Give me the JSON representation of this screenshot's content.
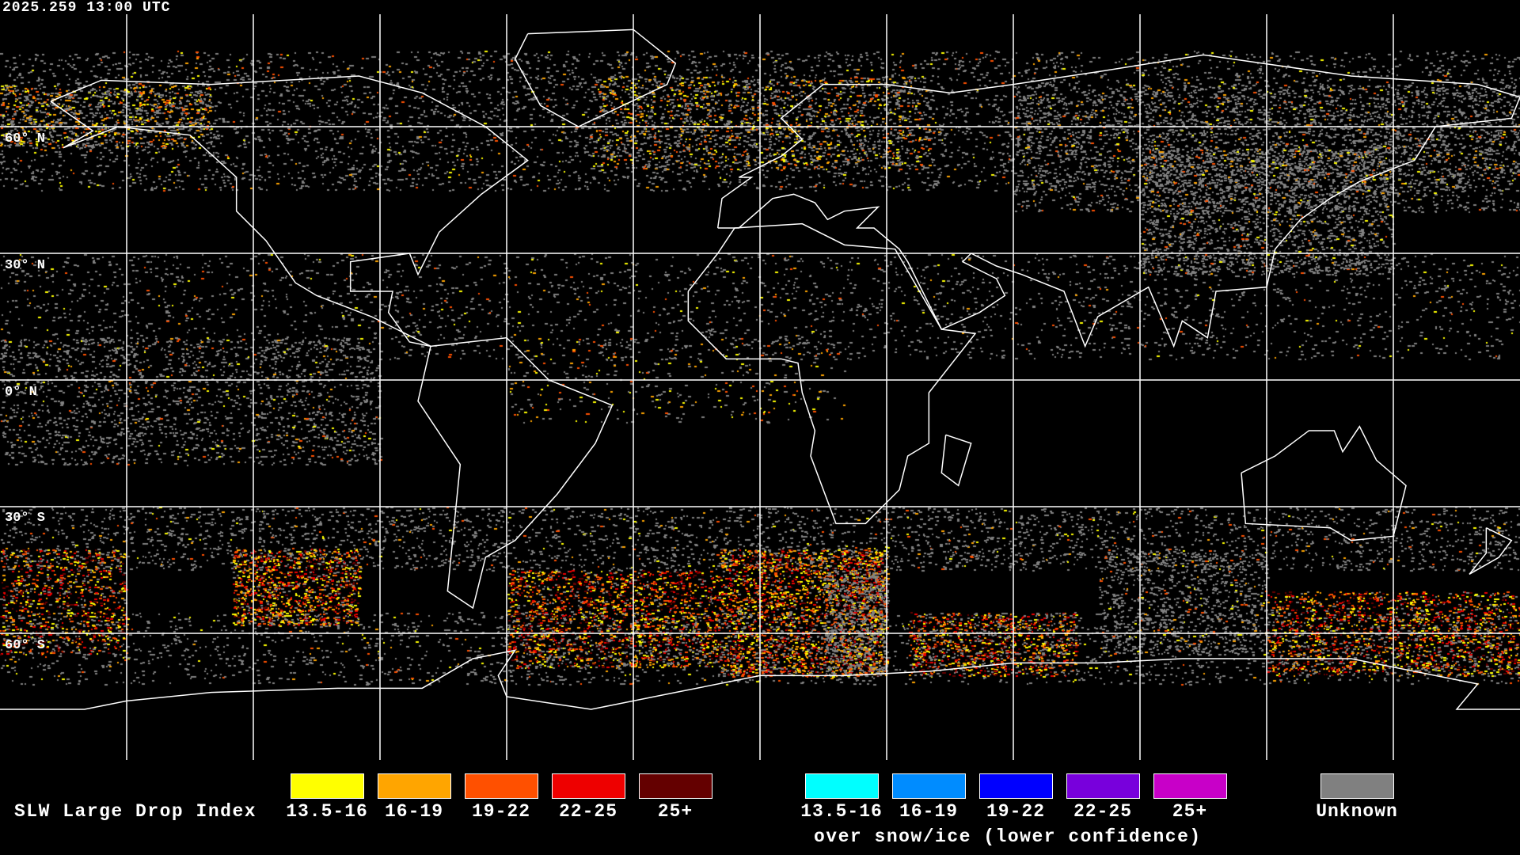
{
  "timestamp": "2025.259 13:00 UTC",
  "lat_labels": [
    "60° N",
    "30° N",
    "0° N",
    "30° S",
    "60° S"
  ],
  "legend": {
    "title": "SLW Large Drop Index",
    "main": [
      {
        "label": "13.5-16",
        "color": "#ffff00"
      },
      {
        "label": "16-19",
        "color": "#ffa500"
      },
      {
        "label": "19-22",
        "color": "#ff5000"
      },
      {
        "label": "22-25",
        "color": "#ee0000"
      },
      {
        "label": "25+",
        "color": "#640000"
      }
    ],
    "snow_ice": [
      {
        "label": "13.5-16",
        "color": "#00ffff"
      },
      {
        "label": "16-19",
        "color": "#008cff"
      },
      {
        "label": "19-22",
        "color": "#0000ff"
      },
      {
        "label": "22-25",
        "color": "#7800dc"
      },
      {
        "label": "25+",
        "color": "#c800c8"
      }
    ],
    "snow_ice_caption": "over snow/ice (lower confidence)",
    "unknown": {
      "label": "Unknown",
      "color": "#808080"
    }
  }
}
